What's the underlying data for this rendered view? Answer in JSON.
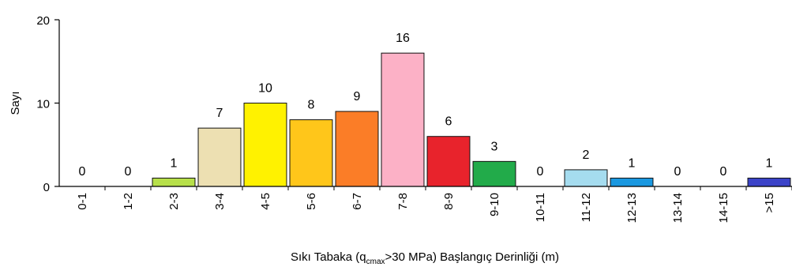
{
  "chart_data": {
    "type": "bar",
    "title": "",
    "categories": [
      "0-1",
      "1-2",
      "2-3",
      "3-4",
      "4-5",
      "5-6",
      "6-7",
      "7-8",
      "8-9",
      "9-10",
      "10-11",
      "11-12",
      "12-13",
      "13-14",
      "14-15",
      ">15"
    ],
    "values": [
      0,
      0,
      1,
      7,
      10,
      8,
      9,
      16,
      6,
      3,
      0,
      2,
      1,
      0,
      0,
      1
    ],
    "colors": [
      "#ffffff",
      "#ffffff",
      "#b7e04a",
      "#ede0b2",
      "#fff200",
      "#ffc61a",
      "#fb7d27",
      "#fcb1c6",
      "#e8232c",
      "#22ab4a",
      "#ffffff",
      "#a5dcef",
      "#1a98e0",
      "#ffffff",
      "#ffffff",
      "#3b43c8"
    ],
    "ylabel": "Sayı",
    "xlabel_parts": {
      "before": "Sıkı Tabaka (q",
      "subscript": "cmax",
      "after": ">30 MPa) Başlangıç Derinliği (m)"
    },
    "ylim": [
      0,
      20
    ],
    "yticks": [
      0,
      10,
      20
    ],
    "grid": false,
    "legend": "none"
  }
}
